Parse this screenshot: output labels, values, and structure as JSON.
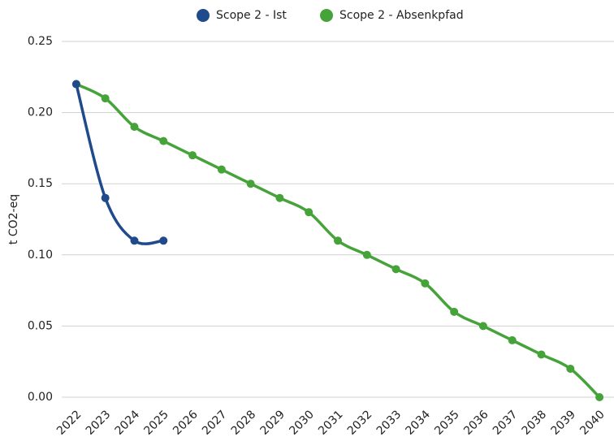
{
  "chart_data": {
    "type": "line",
    "y_label": "t CO2-eq",
    "categories": [
      "2022",
      "2023",
      "2024",
      "2025",
      "2026",
      "2027",
      "2028",
      "2029",
      "2030",
      "2031",
      "2032",
      "2033",
      "2034",
      "2035",
      "2036",
      "2037",
      "2038",
      "2039",
      "2040"
    ],
    "series": [
      {
        "name": "Scope 2 - Ist",
        "color": "#1f4a8c",
        "values": [
          0.22,
          0.14,
          0.11,
          0.11,
          null,
          null,
          null,
          null,
          null,
          null,
          null,
          null,
          null,
          null,
          null,
          null,
          null,
          null,
          null
        ]
      },
      {
        "name": "Scope 2 - Absenkpfad",
        "color": "#45a33a",
        "values": [
          0.22,
          0.21,
          0.19,
          0.18,
          0.17,
          0.16,
          0.15,
          0.14,
          0.13,
          0.11,
          0.1,
          0.09,
          0.08,
          0.06,
          0.05,
          0.04,
          0.03,
          0.02,
          0.0
        ]
      }
    ],
    "ylim": [
      0,
      0.25
    ],
    "yticks": [
      {
        "value": 0,
        "label": "0.00"
      },
      0.05,
      {
        "value": 0.1,
        "label": "0.10"
      },
      0.15,
      {
        "value": 0.2,
        "label": "0.20"
      },
      0.25
    ],
    "grid": true,
    "smooth": true,
    "legend": "top"
  }
}
